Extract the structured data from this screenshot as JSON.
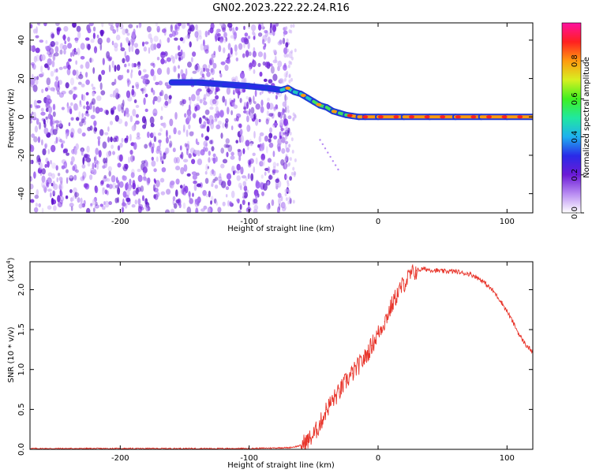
{
  "title": "GN02.2023.222.22.24.R16",
  "chart_data": [
    {
      "type": "heatmap",
      "xlabel": "Height of straight line (km)",
      "ylabel": "Frequency (Hz)",
      "xlim": [
        -270,
        120
      ],
      "ylim": [
        -50,
        49
      ],
      "x_ticks": [
        -200,
        -100,
        0,
        100
      ],
      "y_ticks": [
        -40,
        -20,
        0,
        20,
        40
      ],
      "colorbar": {
        "label": "Normalized spectral amplitude",
        "range": [
          0.0,
          1.0
        ],
        "ticks": [
          0.0,
          0.2,
          0.4,
          0.6,
          0.8
        ],
        "colors": [
          "#ffffff",
          "#b98cf2",
          "#6c1bd6",
          "#2a2ae8",
          "#1fb0f0",
          "#20e8a0",
          "#40f020",
          "#d8f020",
          "#ff9a10",
          "#ff2020",
          "#ff10a0"
        ]
      },
      "ridge": {
        "x": [
          -160,
          -140,
          -120,
          -100,
          -85,
          -75,
          -70,
          -65,
          -60,
          -55,
          -50,
          -45,
          -40,
          -35,
          -30,
          -25,
          -20,
          -15,
          -10,
          0,
          20,
          40,
          60,
          80,
          100,
          120
        ],
        "y": [
          18,
          18,
          17,
          16,
          15,
          14,
          15,
          13,
          12,
          10,
          8,
          6,
          5,
          3,
          2,
          1,
          0.5,
          0,
          0,
          0,
          0,
          0,
          0,
          0,
          0,
          0
        ]
      },
      "noise_x_max": -80
    },
    {
      "type": "line",
      "xlabel": "Height of straight line (km)",
      "ylabel": "SNR (10 * v/v)",
      "y_multiplier": "(x10",
      "y_multiplier_exp": "4",
      "y_multiplier_close": ")",
      "xlim": [
        -270,
        120
      ],
      "ylim": [
        0,
        2.35
      ],
      "x_ticks": [
        -200,
        -100,
        0,
        100
      ],
      "y_ticks": [
        0.0,
        0.5,
        1.0,
        1.5,
        2.0
      ],
      "y_ticklabels": [
        "0.0",
        "0.5",
        "1.0",
        "1.5",
        "2.0"
      ],
      "x_ticklabels": [
        "-200",
        "-100",
        "0",
        "100"
      ],
      "series": [
        {
          "color": "#e8352b",
          "x": [
            -270,
            -200,
            -150,
            -100,
            -75,
            -70,
            -65,
            -60,
            -55,
            -50,
            -45,
            -40,
            -35,
            -30,
            -25,
            -20,
            -15,
            -10,
            -5,
            0,
            5,
            10,
            15,
            20,
            25,
            30,
            35,
            40,
            45,
            50,
            55,
            60,
            65,
            70,
            75,
            80,
            85,
            90,
            95,
            100,
            105,
            110,
            115,
            120
          ],
          "y": [
            0.01,
            0.01,
            0.01,
            0.01,
            0.02,
            0.02,
            0.03,
            0.05,
            0.1,
            0.18,
            0.32,
            0.5,
            0.62,
            0.72,
            0.85,
            0.95,
            1.05,
            1.15,
            1.3,
            1.45,
            1.6,
            1.78,
            1.95,
            2.08,
            2.18,
            2.24,
            2.26,
            2.25,
            2.24,
            2.23,
            2.23,
            2.23,
            2.21,
            2.2,
            2.17,
            2.12,
            2.05,
            1.97,
            1.86,
            1.73,
            1.58,
            1.42,
            1.3,
            1.22
          ]
        }
      ]
    }
  ]
}
